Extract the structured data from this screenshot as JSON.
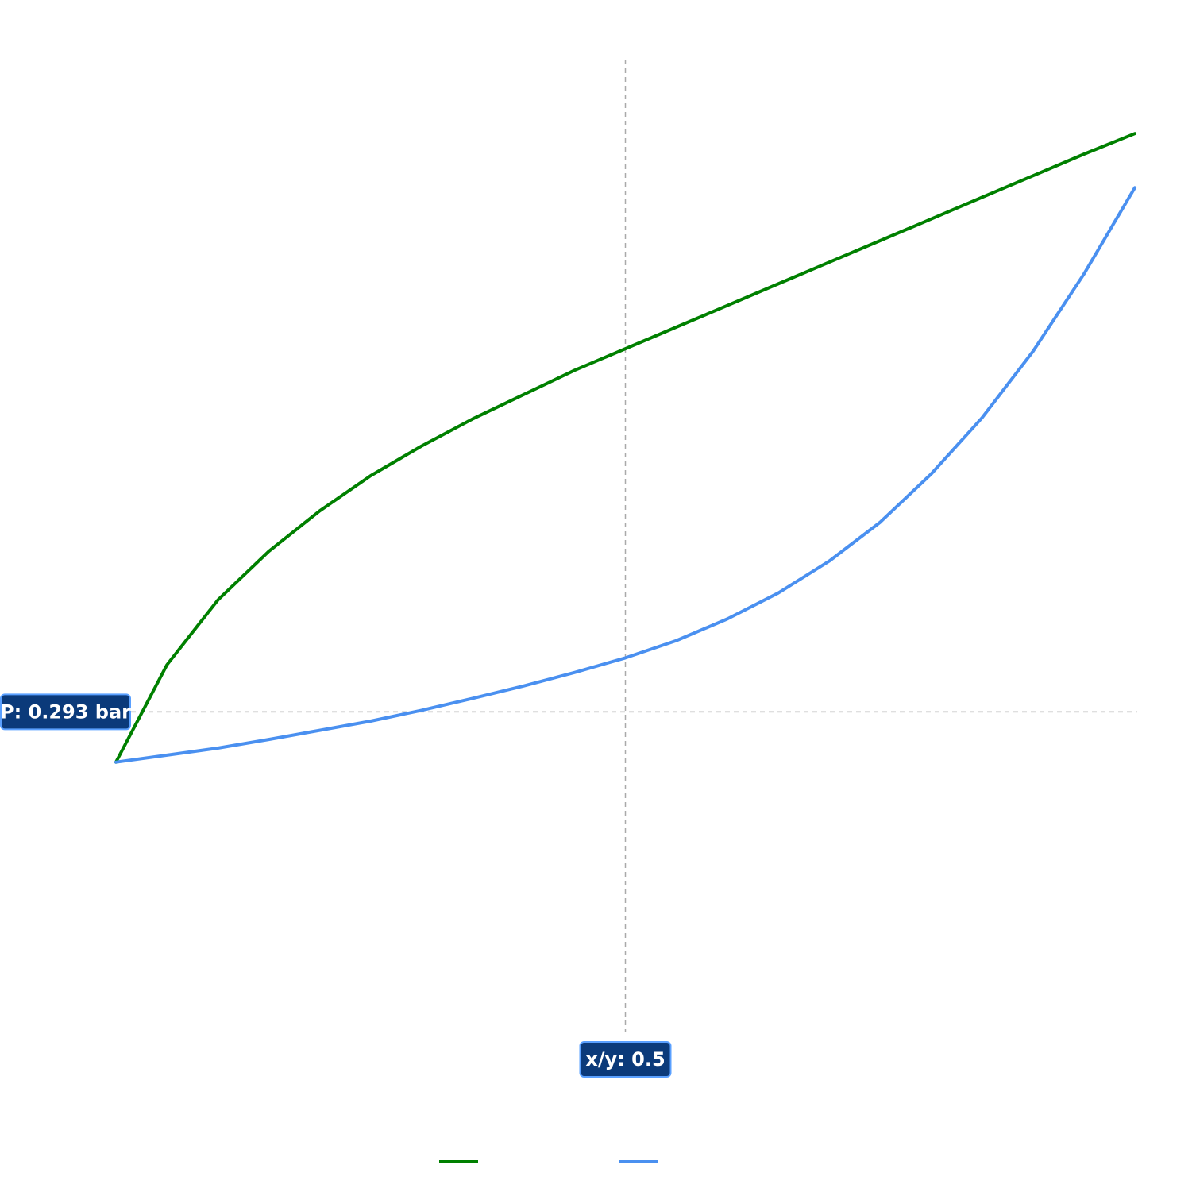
{
  "chart_data": {
    "type": "line",
    "title": "",
    "xlabel": "",
    "ylabel": "",
    "xlim": [
      0,
      1
    ],
    "ylim": [
      -0.3,
      1.5
    ],
    "grid": false,
    "legend_position": "bottom-center",
    "series": [
      {
        "color": "#008000",
        "x": [
          0,
          0.05,
          0.1,
          0.15,
          0.2,
          0.25,
          0.3,
          0.35,
          0.4,
          0.45,
          0.5,
          0.55,
          0.6,
          0.65,
          0.7,
          0.75,
          0.8,
          0.85,
          0.9,
          0.95,
          1.0
        ],
        "y": [
          0.2,
          0.38,
          0.5,
          0.59,
          0.665,
          0.73,
          0.785,
          0.835,
          0.88,
          0.925,
          0.965,
          1.005,
          1.045,
          1.085,
          1.125,
          1.165,
          1.205,
          1.245,
          1.285,
          1.325,
          1.363
        ]
      },
      {
        "color": "#4a90f0",
        "x": [
          0,
          0.05,
          0.1,
          0.15,
          0.2,
          0.25,
          0.3,
          0.35,
          0.4,
          0.45,
          0.5,
          0.55,
          0.6,
          0.65,
          0.7,
          0.75,
          0.8,
          0.85,
          0.9,
          0.95,
          1.0
        ],
        "y": [
          0.2,
          0.213,
          0.226,
          0.242,
          0.259,
          0.276,
          0.296,
          0.318,
          0.341,
          0.366,
          0.393,
          0.425,
          0.465,
          0.513,
          0.572,
          0.644,
          0.733,
          0.837,
          0.96,
          1.103,
          1.263
        ]
      }
    ],
    "crosshair": {
      "x": 0.5,
      "y": 0.293,
      "x_label": "x/y: 0.5",
      "y_label": "P: 0.293 bar",
      "color": "#aaaaaa"
    }
  }
}
